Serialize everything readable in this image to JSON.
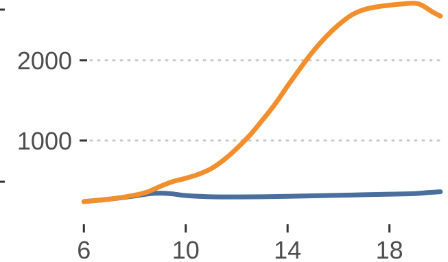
{
  "chart_data": {
    "type": "line",
    "title": "",
    "xlabel": "",
    "ylabel": "",
    "xlim": [
      5.75,
      20.3
    ],
    "ylim": [
      0,
      2750
    ],
    "xticks": [
      6,
      10,
      14,
      18
    ],
    "xtick_labels": [
      "6",
      "10",
      "14",
      "18"
    ],
    "yticks": [
      1000,
      2000
    ],
    "ytick_labels": [
      "1000",
      "2000"
    ],
    "grid": "horizontal dotted",
    "legend": "none",
    "series": [
      {
        "color": "#4a6f9d",
        "x": [
          6,
          7,
          8,
          8.5,
          9,
          9.5,
          10,
          11,
          12,
          13,
          14,
          15,
          16,
          17,
          18,
          19,
          19.5,
          20
        ],
        "y": [
          240,
          270,
          310,
          335,
          345,
          335,
          315,
          300,
          298,
          300,
          305,
          312,
          318,
          325,
          332,
          340,
          352,
          362
        ]
      },
      {
        "color": "#f28e2b",
        "x": [
          6,
          7,
          8,
          8.5,
          9,
          9.5,
          10,
          10.5,
          11,
          11.5,
          12,
          12.5,
          13,
          13.5,
          14,
          14.5,
          15,
          15.5,
          16,
          16.5,
          17,
          17.5,
          18,
          18.5,
          19,
          19.3,
          19.7,
          20
        ],
        "y": [
          240,
          270,
          320,
          360,
          430,
          490,
          530,
          580,
          650,
          760,
          900,
          1060,
          1250,
          1450,
          1680,
          1900,
          2110,
          2290,
          2440,
          2560,
          2630,
          2665,
          2685,
          2700,
          2710,
          2680,
          2600,
          2550
        ]
      }
    ]
  }
}
